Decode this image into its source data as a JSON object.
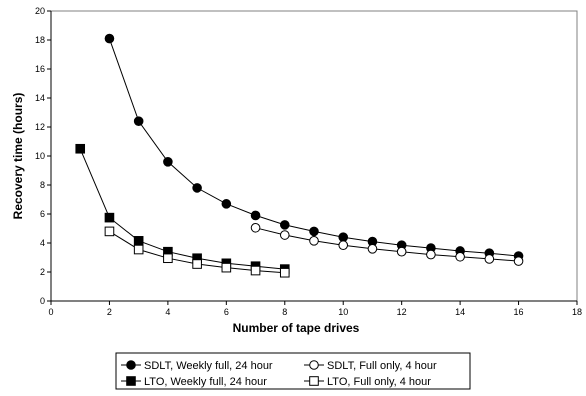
{
  "chart_data": {
    "type": "line",
    "title": "",
    "xlabel": "Number of tape drives",
    "ylabel": "Recovery time (hours)",
    "xlim": [
      0,
      18
    ],
    "ylim": [
      0,
      20
    ],
    "xticks": [
      0,
      2,
      4,
      6,
      8,
      10,
      12,
      14,
      16,
      18
    ],
    "yticks": [
      0,
      2,
      4,
      6,
      8,
      10,
      12,
      14,
      16,
      18,
      20
    ],
    "grid": false,
    "legend_position": "bottom",
    "series": [
      {
        "name": "SDLT, Weekly full, 24 hour",
        "marker": "circle-filled",
        "x": [
          2,
          3,
          4,
          5,
          6,
          7,
          8,
          9,
          10,
          11,
          12,
          13,
          14,
          15,
          16
        ],
        "y": [
          18.1,
          12.4,
          9.6,
          7.8,
          6.7,
          5.9,
          5.25,
          4.8,
          4.4,
          4.1,
          3.85,
          3.65,
          3.45,
          3.3,
          3.1
        ]
      },
      {
        "name": "SDLT, Full only, 4 hour",
        "marker": "circle-open",
        "x": [
          7,
          8,
          9,
          10,
          11,
          12,
          13,
          14,
          15,
          16
        ],
        "y": [
          5.05,
          4.55,
          4.15,
          3.85,
          3.6,
          3.4,
          3.2,
          3.05,
          2.9,
          2.75
        ]
      },
      {
        "name": "LTO, Weekly full, 24 hour",
        "marker": "square-filled",
        "x": [
          1,
          2,
          3,
          4,
          5,
          6,
          7,
          8
        ],
        "y": [
          10.5,
          5.75,
          4.15,
          3.4,
          2.95,
          2.6,
          2.4,
          2.2
        ]
      },
      {
        "name": "LTO, Full only, 4 hour",
        "marker": "square-open",
        "x": [
          2,
          3,
          4,
          5,
          6,
          7,
          8
        ],
        "y": [
          4.8,
          3.55,
          2.95,
          2.55,
          2.3,
          2.1,
          1.95
        ]
      }
    ]
  }
}
